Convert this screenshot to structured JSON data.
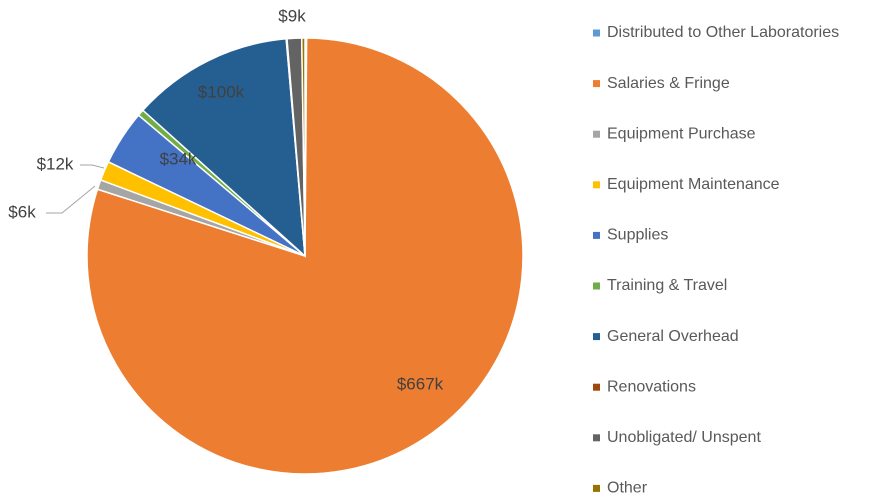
{
  "chart_data": {
    "type": "pie",
    "categories": [
      "Distributed to Other Laboratories",
      "Salaries & Fringe",
      "Equipment Purchase",
      "Equipment Maintenance",
      "Supplies",
      "Training & Travel",
      "General Overhead",
      "Renovations",
      "Unobligated/ Unspent",
      "Other"
    ],
    "values": [
      1,
      667,
      6,
      12,
      34,
      4,
      100,
      0.5,
      9,
      2
    ],
    "value_labels": [
      null,
      "$667k",
      "$6k",
      "$12k",
      "$34k",
      null,
      "$100k",
      null,
      "$9k",
      null
    ],
    "colors": [
      "#5b9bd5",
      "#ed7d31",
      "#a5a5a5",
      "#ffc000",
      "#4472c4",
      "#70ad47",
      "#255e91",
      "#9e480e",
      "#636363",
      "#997300"
    ],
    "legend": "right"
  }
}
